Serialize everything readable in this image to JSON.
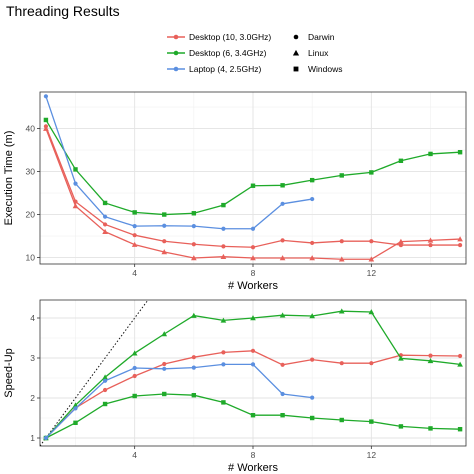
{
  "title": "Threading Results",
  "colors": {
    "Desktop (10, 3.0GHz)": "#e8605a",
    "Desktop (6, 3.4GHz)": "#1faa2a",
    "Laptop (4, 2.5GHz)": "#5b8fe0"
  },
  "legend": {
    "color_entries": [
      "Desktop (10, 3.0GHz)",
      "Desktop (6, 3.4GHz)",
      "Laptop (4, 2.5GHz)"
    ],
    "shape_entries": [
      {
        "label": "Darwin",
        "shape": "circle"
      },
      {
        "label": "Linux",
        "shape": "triangle"
      },
      {
        "label": "Windows",
        "shape": "square"
      }
    ]
  },
  "chart_data": [
    {
      "type": "line",
      "xlabel": "# Workers",
      "ylabel": "Execution Time (m)",
      "xlim": [
        0.8,
        15.2
      ],
      "ylim": [
        8.5,
        48.5
      ],
      "xticks": [
        4,
        8,
        12
      ],
      "yticks": [
        10,
        20,
        30,
        40
      ],
      "grid": true,
      "series": [
        {
          "name": "Desktop (10, 3.0GHz)",
          "shape": "circle",
          "x": [
            1,
            2,
            3,
            4,
            5,
            6,
            7,
            8,
            9,
            10,
            11,
            12,
            13,
            14,
            15
          ],
          "y": [
            40.5,
            23.0,
            17.7,
            15.2,
            13.8,
            13.1,
            12.6,
            12.4,
            14.0,
            13.4,
            13.8,
            13.8,
            12.9,
            12.9,
            12.9
          ]
        },
        {
          "name": "Desktop (10, 3.0GHz)",
          "shape": "triangle",
          "x": [
            1,
            2,
            3,
            4,
            5,
            6,
            7,
            8,
            9,
            10,
            11,
            12,
            13,
            14,
            15
          ],
          "y": [
            40.0,
            22.0,
            16.0,
            13.0,
            11.3,
            9.9,
            10.2,
            9.9,
            9.9,
            9.9,
            9.6,
            9.6,
            13.7,
            14.0,
            14.3
          ]
        },
        {
          "name": "Desktop (6, 3.4GHz)",
          "shape": "square",
          "x": [
            1,
            2,
            3,
            4,
            5,
            6,
            7,
            8,
            9,
            10,
            11,
            12,
            13,
            14,
            15
          ],
          "y": [
            42.0,
            30.5,
            22.7,
            20.5,
            20.0,
            20.3,
            22.2,
            26.7,
            26.8,
            28.0,
            29.1,
            29.8,
            32.5,
            34.1,
            34.5
          ]
        },
        {
          "name": "Laptop (4, 2.5GHz)",
          "shape": "circle",
          "x": [
            1,
            2,
            3,
            4,
            5,
            6,
            7,
            8,
            9,
            10
          ],
          "y": [
            47.5,
            27.2,
            19.5,
            17.3,
            17.4,
            17.3,
            16.7,
            16.7,
            22.5,
            23.6
          ]
        }
      ]
    },
    {
      "type": "line",
      "xlabel": "# Workers",
      "ylabel": "Speed-Up",
      "xlim": [
        0.8,
        15.2
      ],
      "ylim": [
        0.8,
        4.45
      ],
      "xticks": [
        4,
        8,
        12
      ],
      "yticks": [
        1,
        2,
        3,
        4
      ],
      "grid": true,
      "reference_line": {
        "style": "dotted",
        "x": [
          0.8,
          4.6
        ],
        "y": [
          0.8,
          4.6
        ]
      },
      "series": [
        {
          "name": "Desktop (10, 3.0GHz)",
          "shape": "circle",
          "x": [
            1,
            2,
            3,
            4,
            5,
            6,
            7,
            8,
            9,
            10,
            11,
            12,
            13,
            14,
            15
          ],
          "y": [
            1.0,
            1.75,
            2.2,
            2.55,
            2.85,
            3.02,
            3.14,
            3.18,
            2.83,
            2.96,
            2.87,
            2.87,
            3.07,
            3.06,
            3.05
          ]
        },
        {
          "name": "Desktop (6, 3.4GHz)",
          "shape": "triangle",
          "x": [
            1,
            2,
            3,
            4,
            5,
            6,
            7,
            8,
            9,
            10,
            11,
            12,
            13,
            14,
            15
          ],
          "y": [
            1.0,
            1.82,
            2.52,
            3.12,
            3.6,
            4.06,
            3.94,
            4.0,
            4.07,
            4.05,
            4.17,
            4.15,
            2.99,
            2.93,
            2.84
          ]
        },
        {
          "name": "Desktop (6, 3.4GHz)",
          "shape": "square",
          "x": [
            1,
            2,
            3,
            4,
            5,
            6,
            7,
            8,
            9,
            10,
            11,
            12,
            13,
            14,
            15
          ],
          "y": [
            1.0,
            1.38,
            1.85,
            2.05,
            2.1,
            2.07,
            1.89,
            1.57,
            1.57,
            1.5,
            1.45,
            1.41,
            1.29,
            1.24,
            1.22
          ]
        },
        {
          "name": "Laptop (4, 2.5GHz)",
          "shape": "circle",
          "x": [
            1,
            2,
            3,
            4,
            5,
            6,
            7,
            8,
            9,
            10
          ],
          "y": [
            1.0,
            1.74,
            2.43,
            2.75,
            2.73,
            2.76,
            2.84,
            2.84,
            2.1,
            2.01
          ]
        }
      ]
    }
  ]
}
